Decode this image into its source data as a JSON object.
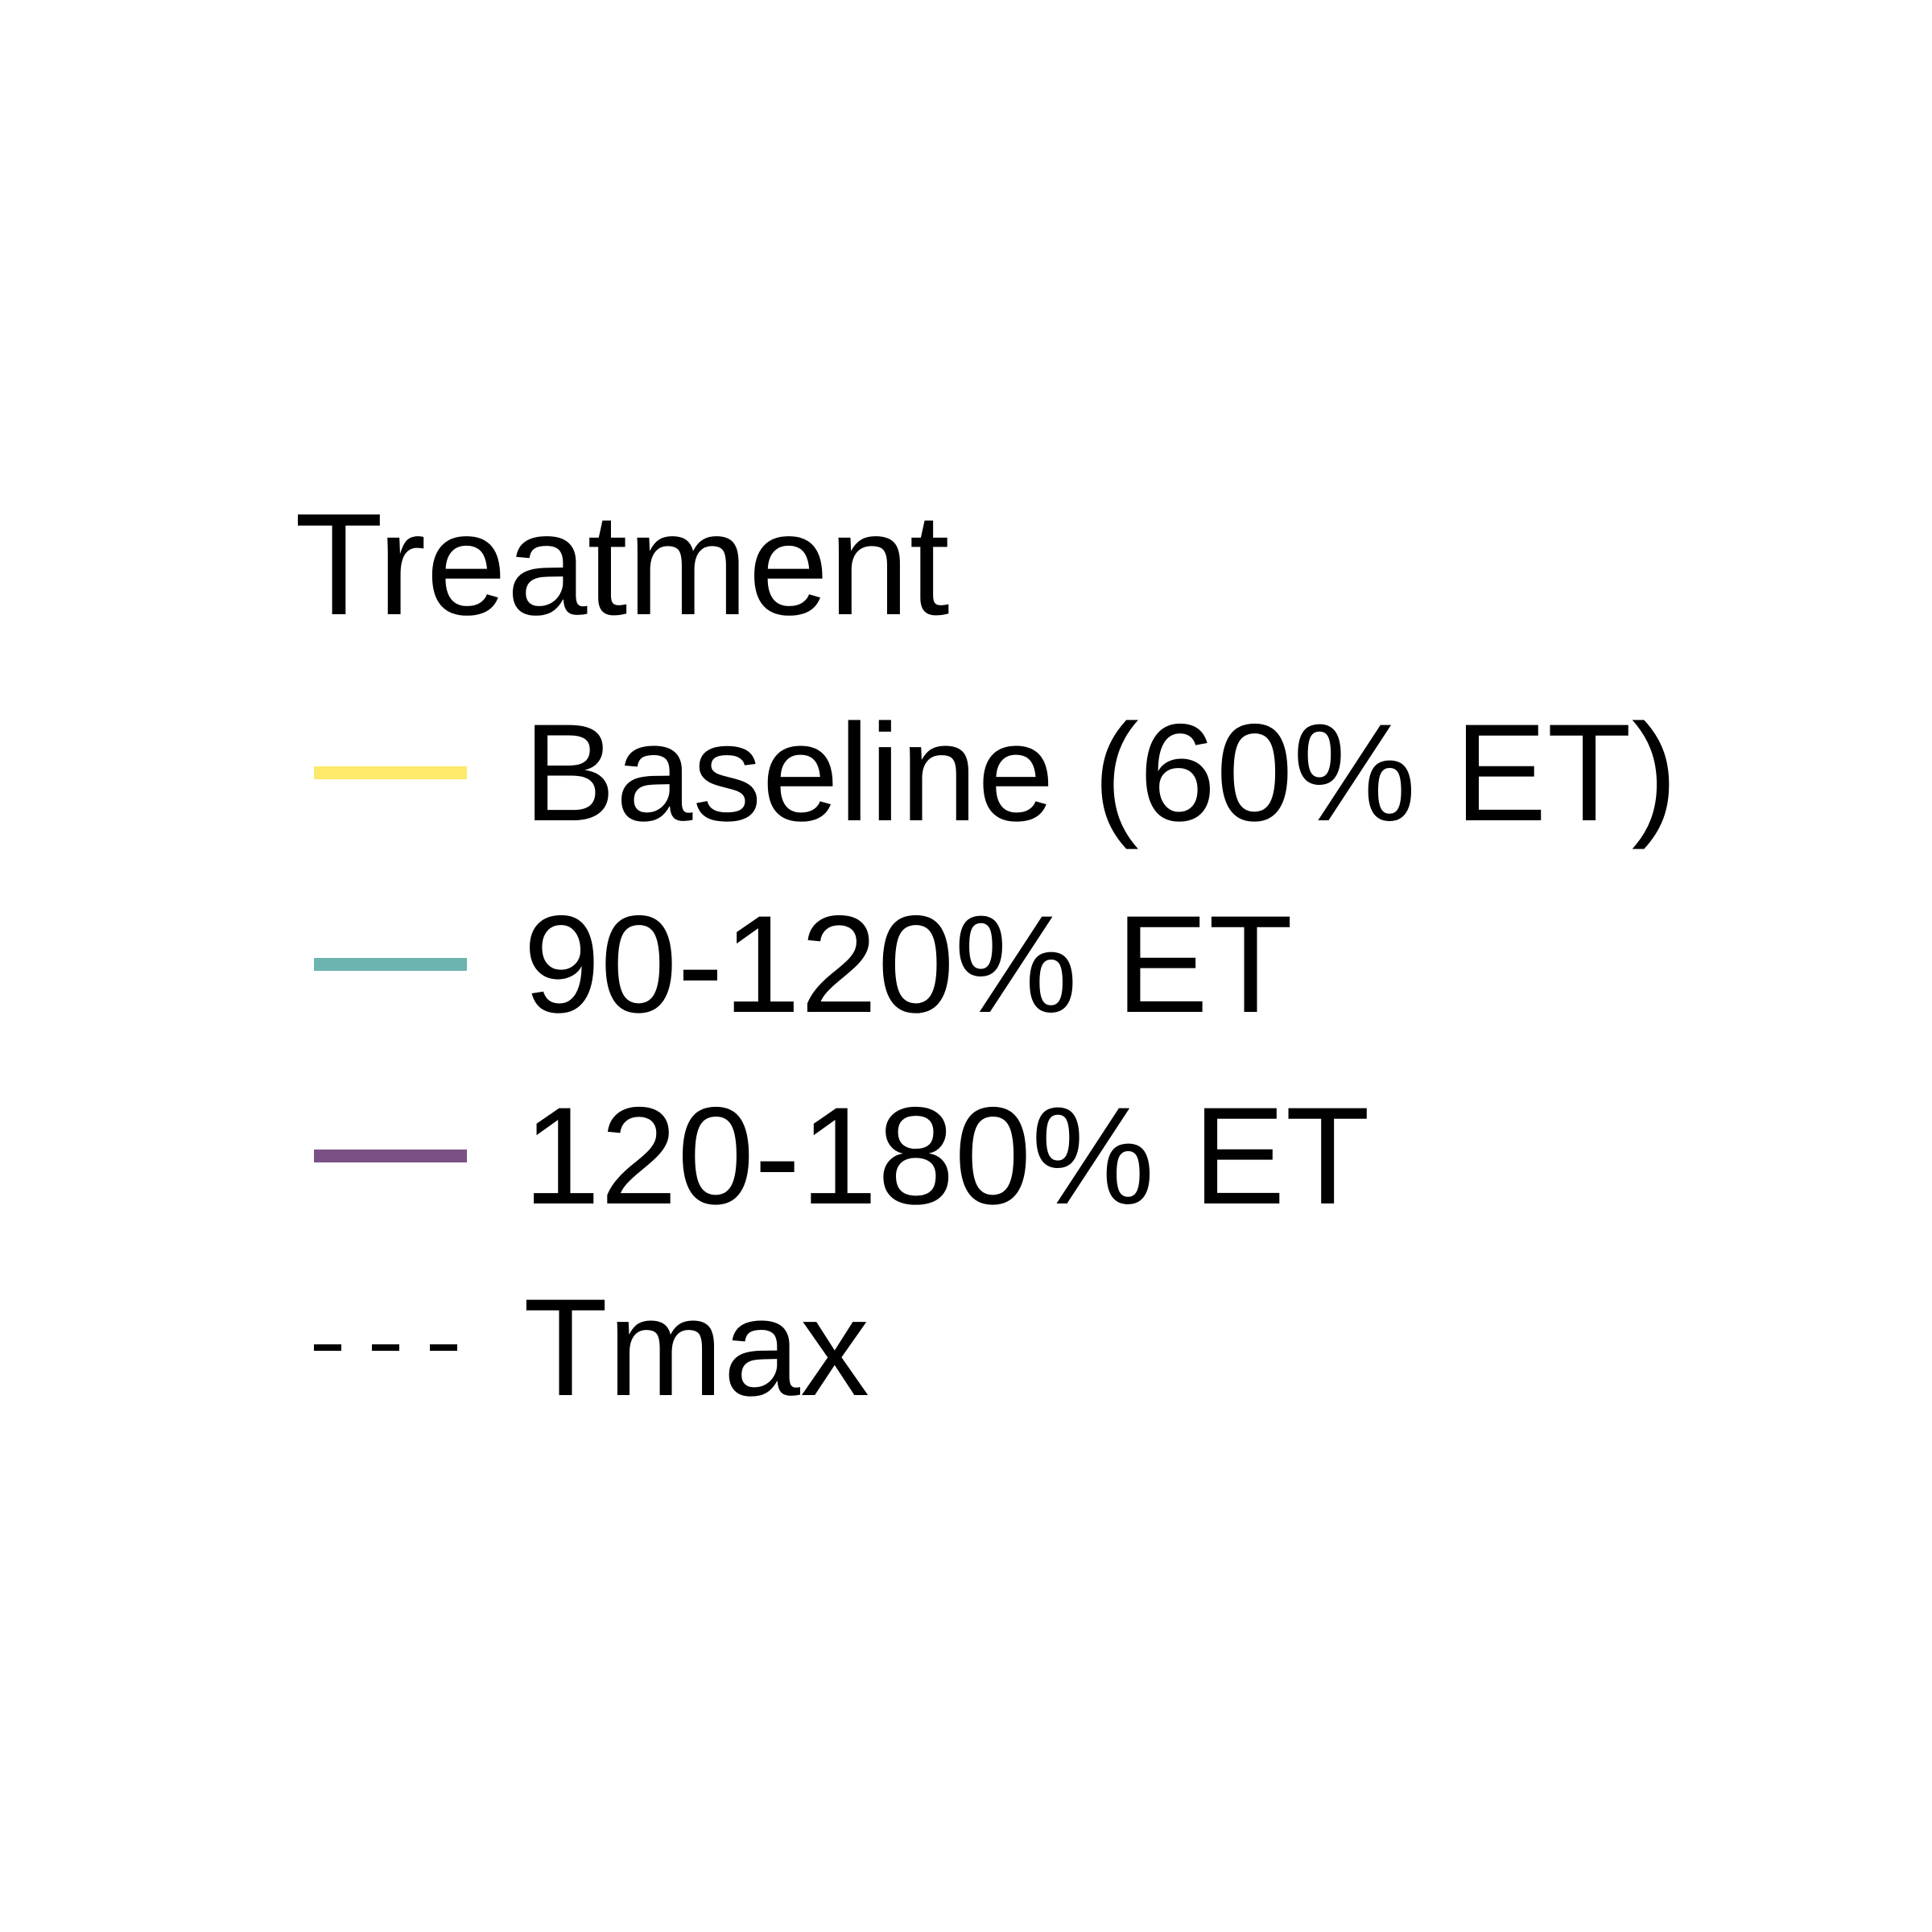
{
  "chart_data": {
    "type": "line",
    "legend": {
      "title": "Treatment",
      "items": [
        {
          "label": "Baseline (60% ET)",
          "color": "#fde96a",
          "style": "solid"
        },
        {
          "label": "90-120% ET",
          "color": "#6cb4b0",
          "style": "solid"
        },
        {
          "label": "120-180% ET",
          "color": "#7a5185",
          "style": "solid"
        },
        {
          "label": "Tmax",
          "color": "#000000",
          "style": "dashed"
        }
      ]
    }
  }
}
